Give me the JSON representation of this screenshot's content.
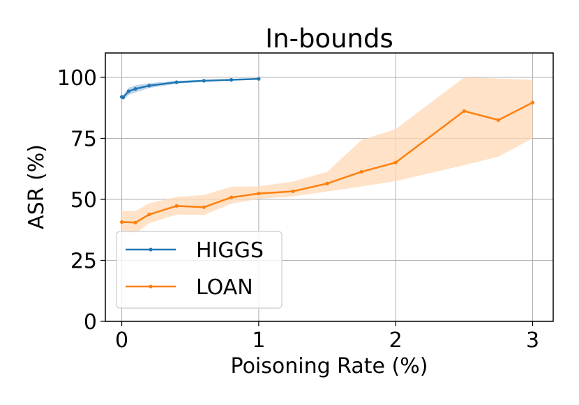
{
  "chart_data": {
    "type": "line",
    "title": "In-bounds",
    "xlabel": "Poisoning Rate (%)",
    "ylabel": "ASR (%)",
    "xlim": [
      -0.12,
      3.15
    ],
    "ylim": [
      0,
      110
    ],
    "xticks": [
      0,
      1,
      2,
      3
    ],
    "yticks": [
      0,
      25,
      50,
      75,
      100
    ],
    "grid": true,
    "legend_position": "lower-left",
    "series": [
      {
        "name": "HIGGS",
        "color": "#1f77b4",
        "band_color": "#aec7e8",
        "x": [
          0,
          0.01,
          0.05,
          0.1,
          0.2,
          0.4,
          0.6,
          0.8,
          1.0
        ],
        "y": [
          92.0,
          91.8,
          94.3,
          95.3,
          96.6,
          98.0,
          98.6,
          99.0,
          99.4
        ],
        "y_low": [
          91.0,
          90.8,
          92.8,
          93.8,
          95.6,
          97.4,
          98.2,
          98.7,
          99.1
        ],
        "y_high": [
          93.0,
          92.8,
          95.8,
          96.8,
          97.6,
          98.6,
          99.0,
          99.3,
          99.7
        ]
      },
      {
        "name": "LOAN",
        "color": "#ff7f0e",
        "band_color": "#ffd8b4",
        "x": [
          0,
          0.1,
          0.2,
          0.4,
          0.6,
          0.8,
          1.0,
          1.25,
          1.5,
          1.75,
          2.0,
          2.5,
          2.75,
          3.0
        ],
        "y": [
          40.7,
          40.5,
          43.8,
          47.3,
          46.8,
          50.8,
          52.4,
          53.3,
          56.5,
          61.3,
          65.1,
          86.2,
          82.5,
          89.7
        ],
        "y_low": [
          37.0,
          36.0,
          40.2,
          43.8,
          43.6,
          48.2,
          50.2,
          51.2,
          53.2,
          55.3,
          57.5,
          64.0,
          67.5,
          75.0
        ],
        "y_high": [
          45.2,
          45.2,
          48.4,
          51.0,
          51.8,
          55.2,
          55.3,
          57.3,
          61.3,
          74.3,
          78.8,
          100.0,
          99.5,
          99.0
        ]
      }
    ]
  }
}
